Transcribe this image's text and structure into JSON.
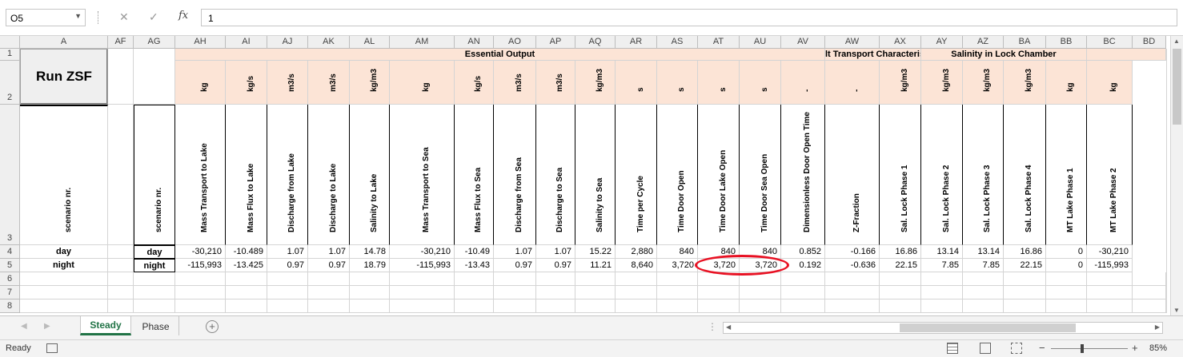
{
  "formula_bar": {
    "cell_ref": "O5",
    "formula": "1",
    "fx_label": "fx",
    "cancel_glyph": "✕",
    "enter_glyph": "✓"
  },
  "columns": [
    "A",
    "AF",
    "AG",
    "AH",
    "AI",
    "AJ",
    "AK",
    "AL",
    "AM",
    "AN",
    "AO",
    "AP",
    "AQ",
    "AR",
    "AS",
    "AT",
    "AU",
    "AV",
    "AW",
    "AX",
    "AY",
    "AZ",
    "BA",
    "BB",
    "BC",
    "BD"
  ],
  "row_numbers": [
    "1",
    "2",
    "3",
    "4",
    "5",
    "6",
    "7",
    "8"
  ],
  "button_label": "Run ZSF",
  "groups": {
    "essential": "Essential Output",
    "salt": "lt Transport Characteristi",
    "salinity": "Salinity in Lock Chamber"
  },
  "a_header": "scenario nr.",
  "ag_header": "scenario nr.",
  "units": [
    "kg",
    "kg/s",
    "m3/s",
    "m3/s",
    "kg/m3",
    "kg",
    "kg/s",
    "m3/s",
    "m3/s",
    "kg/m3",
    "s",
    "s",
    "s",
    "s",
    "-",
    "-",
    "kg/m3",
    "kg/m3",
    "kg/m3",
    "kg/m3",
    "kg",
    "kg"
  ],
  "headers": [
    "Mass Transport to Lake",
    "Mass Flux to Lake",
    "Discharge from Lake",
    "Discharge to Lake",
    "Salinity to Lake",
    "Mass Transport to Sea",
    "Mass Flux to Sea",
    "Discharge from Sea",
    "Discharge to Sea",
    "Salinity to Sea",
    "Time per Cycle",
    "Time Door Open",
    "Time Door Lake Open",
    "Time Door Sea Open",
    "Dimensionless Door Open Time",
    "Z-Fraction",
    "Sal. Lock Phase 1",
    "Sal. Lock Phase 2",
    "Sal. Lock Phase 3",
    "Sal. Lock Phase 4",
    "MT Lake Phase 1",
    "MT Lake Phase 2"
  ],
  "rows": [
    {
      "a": "day",
      "ag": "day",
      "values": [
        "-30,210",
        "-10.489",
        "1.07",
        "1.07",
        "14.78",
        "-30,210",
        "-10.49",
        "1.07",
        "1.07",
        "15.22",
        "2,880",
        "840",
        "840",
        "840",
        "0.852",
        "-0.166",
        "16.86",
        "13.14",
        "13.14",
        "16.86",
        "0",
        "-30,210"
      ]
    },
    {
      "a": "night",
      "ag": "night",
      "values": [
        "-115,993",
        "-13.425",
        "0.97",
        "0.97",
        "18.79",
        "-115,993",
        "-13.43",
        "0.97",
        "0.97",
        "11.21",
        "8,640",
        "3,720",
        "3,720",
        "3,720",
        "0.192",
        "-0.636",
        "22.15",
        "7.85",
        "7.85",
        "22.15",
        "0",
        "-115,993"
      ]
    }
  ],
  "sheet_tabs": [
    "Steady",
    "Phase"
  ],
  "add_sheet_glyph": "+",
  "status": {
    "mode": "Ready",
    "zoom": "85%",
    "zoom_minus": "−",
    "zoom_plus": "+"
  },
  "colors": {
    "peach": "#fce4d6",
    "accent": "#217346",
    "highlight": "#e81123"
  }
}
